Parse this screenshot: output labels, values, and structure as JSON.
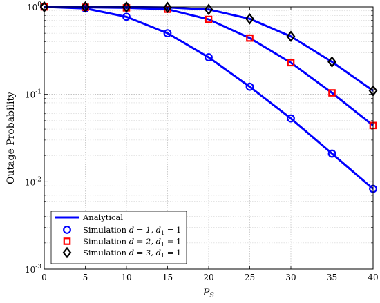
{
  "chart_data": {
    "type": "line",
    "xlabel": "P_S",
    "ylabel": "Outage Probability",
    "xlim": [
      0,
      40
    ],
    "ylim": [
      0.001,
      1
    ],
    "yscale": "log",
    "x_ticks": [
      "0",
      "5",
      "10",
      "15",
      "20",
      "25",
      "30",
      "35",
      "40"
    ],
    "y_ticks": [
      {
        "base": "10",
        "exp": "0"
      },
      {
        "base": "10",
        "exp": "-1"
      },
      {
        "base": "10",
        "exp": "-2"
      },
      {
        "base": "10",
        "exp": "-3"
      }
    ],
    "grid": true,
    "legend_position": "bottom-left",
    "x": [
      0,
      5,
      10,
      15,
      20,
      25,
      30,
      35,
      40
    ],
    "series": [
      {
        "name": "Simulation d = 1, d1 = 1",
        "legend_prefix": "Simulation ",
        "legend_d": "d = 1, d",
        "legend_sub": "1",
        "legend_suffix": " = 1",
        "marker": "circle",
        "color": "#0000ff",
        "values": [
          1.0,
          0.96,
          0.77,
          0.5,
          0.265,
          0.122,
          0.053,
          0.021,
          0.0083
        ]
      },
      {
        "name": "Simulation d = 2, d1 = 1",
        "legend_prefix": "Simulation ",
        "legend_d": "d = 2, d",
        "legend_sub": "1",
        "legend_suffix": " = 1",
        "marker": "square",
        "color": "#ff0000",
        "values": [
          1.0,
          0.99,
          0.975,
          0.94,
          0.72,
          0.44,
          0.23,
          0.104,
          0.044
        ]
      },
      {
        "name": "Simulation d = 3, d1 = 1",
        "legend_prefix": "Simulation ",
        "legend_d": "d = 3, d",
        "legend_sub": "1",
        "legend_suffix": " = 1",
        "marker": "diamond",
        "color": "#000000",
        "values": [
          1.0,
          1.0,
          0.995,
          0.985,
          0.935,
          0.73,
          0.46,
          0.235,
          0.11
        ]
      }
    ],
    "analytical_label": "Analytical",
    "analytical_color": "#0000ff"
  }
}
